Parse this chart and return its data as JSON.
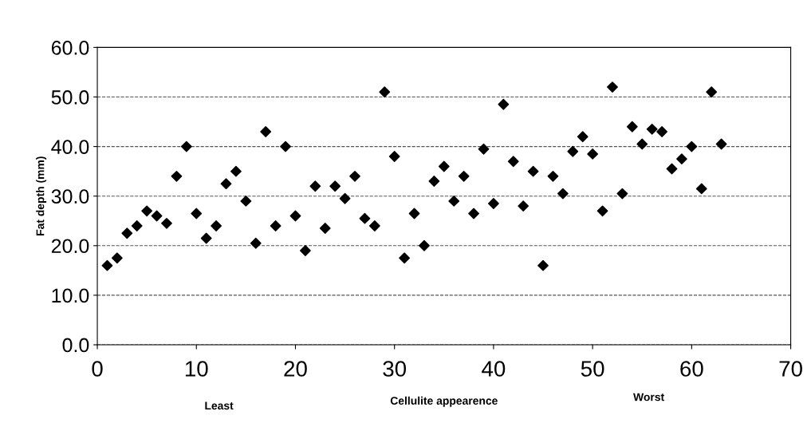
{
  "chart_data": {
    "type": "scatter",
    "xlabel": "Cellulite appearence",
    "ylabel": "Fat depth (mm)",
    "annotations": [
      "Least",
      "Worst"
    ],
    "x": [
      1,
      2,
      3,
      4,
      5,
      6,
      7,
      8,
      9,
      10,
      11,
      12,
      13,
      14,
      15,
      16,
      17,
      18,
      19,
      20,
      21,
      22,
      23,
      24,
      25,
      26,
      27,
      28,
      29,
      30,
      31,
      32,
      33,
      34,
      35,
      36,
      37,
      38,
      39,
      40,
      41,
      42,
      43,
      44,
      45,
      46,
      47,
      48,
      49,
      50,
      51,
      52,
      53,
      54,
      55,
      56,
      57,
      58,
      59,
      60,
      61,
      62,
      63
    ],
    "values": [
      16,
      17.5,
      22.5,
      24,
      27,
      26,
      24.5,
      34,
      40,
      26.5,
      21.5,
      24,
      32.5,
      35,
      29,
      20.5,
      43,
      24,
      40,
      26,
      19,
      32,
      23.5,
      32,
      29.5,
      34,
      25.5,
      24,
      51,
      38,
      17.5,
      26.5,
      20,
      33,
      36,
      29,
      34,
      26.5,
      39.5,
      28.5,
      48.5,
      37,
      28,
      35,
      16,
      34,
      30.5,
      39,
      42,
      38.5,
      27,
      52,
      30.5,
      44,
      40.5,
      43.5,
      43,
      35.5,
      37.5,
      40,
      31.5,
      51,
      40.5
    ],
    "color": "#000000",
    "marker": "diamond",
    "xlim": [
      0,
      70
    ],
    "xticks": [
      0,
      10,
      20,
      30,
      40,
      50,
      60,
      70
    ],
    "ylim": [
      0,
      60
    ],
    "yticks": [
      {
        "value": 0,
        "label": "0.0"
      },
      {
        "value": 10,
        "label": "10.0"
      },
      {
        "value": 20,
        "label": "20.0"
      },
      {
        "value": 30,
        "label": "30.0"
      },
      {
        "value": 40,
        "label": "40.0"
      },
      {
        "value": 50,
        "label": "50.0"
      },
      {
        "value": 60,
        "label": "60.0"
      }
    ],
    "grid": "y",
    "legend": false
  }
}
